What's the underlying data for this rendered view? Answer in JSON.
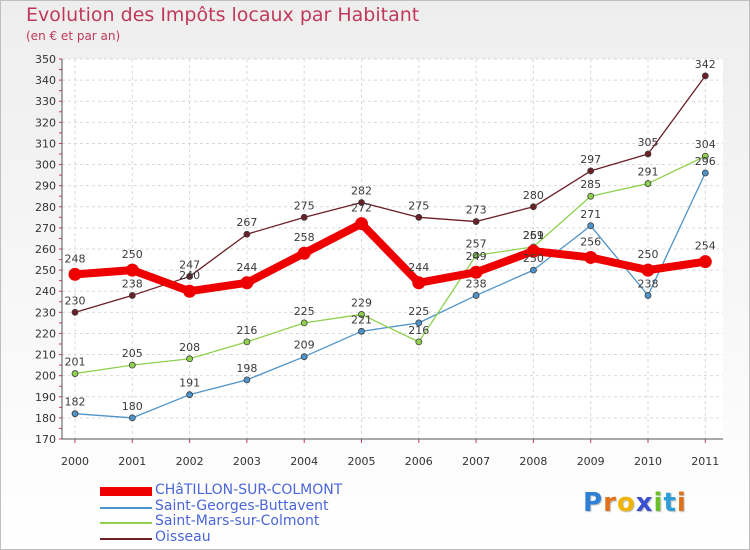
{
  "title": "Evolution des Impôts locaux par Habitant",
  "subtitle": "(en € et par an)",
  "brand": [
    "P",
    "r",
    "o",
    "x",
    "i",
    "t",
    "i"
  ],
  "brand_colors": [
    "#2e7fd6",
    "#e0701a",
    "#f0b400",
    "#3a4fd0",
    "#6bbf2a",
    "#2e9fd6",
    "#e0701a"
  ],
  "colors": {
    "red": "#ee0000",
    "blue": "#4e93c9",
    "green": "#8fd14f",
    "brown": "#6b1f26"
  },
  "chart_data": {
    "type": "line",
    "title": "Evolution des Impôts locaux par Habitant",
    "xlabel": "",
    "ylabel": "(en € et par an)",
    "ylim": [
      170,
      350
    ],
    "y_ticks": [
      170,
      180,
      190,
      200,
      210,
      220,
      230,
      240,
      250,
      260,
      270,
      280,
      290,
      300,
      310,
      320,
      330,
      340,
      350
    ],
    "categories": [
      "2000",
      "2001",
      "2002",
      "2003",
      "2004",
      "2005",
      "2006",
      "2007",
      "2008",
      "2009",
      "2010",
      "2011"
    ],
    "grid": true,
    "legend_position": "bottom-left",
    "series": [
      {
        "name": "CHâTILLON-SUR-COLMONT",
        "color": "#ee0000",
        "style": "thick",
        "values": [
          248,
          250,
          240,
          244,
          258,
          272,
          244,
          249,
          259,
          256,
          250,
          254
        ],
        "labels": [
          "248",
          "250",
          "240",
          "244",
          "258",
          "272",
          "244",
          "249",
          "259",
          "256",
          "250",
          "254"
        ]
      },
      {
        "name": "Saint-Georges-Buttavent",
        "color": "#4e93c9",
        "style": "thin",
        "values": [
          182,
          180,
          191,
          198,
          209,
          221,
          225,
          238,
          250,
          271,
          238,
          296
        ],
        "labels": [
          "182",
          "180",
          "191",
          "198",
          "209",
          "221",
          "225",
          "238",
          "250",
          "271",
          "238",
          "296"
        ]
      },
      {
        "name": "Saint-Mars-sur-Colmont",
        "color": "#8fd14f",
        "style": "thin",
        "values": [
          201,
          205,
          208,
          216,
          225,
          229,
          216,
          257,
          261,
          285,
          291,
          304
        ],
        "labels": [
          "201",
          "205",
          "208",
          "216",
          "225",
          "229",
          "216",
          "257",
          "261",
          "285",
          "291",
          "304"
        ]
      },
      {
        "name": "Oisseau",
        "color": "#6b1f26",
        "style": "thin",
        "values": [
          230,
          238,
          247,
          267,
          275,
          282,
          275,
          273,
          280,
          297,
          305,
          342
        ],
        "labels": [
          "230",
          "238",
          "247",
          "267",
          "275",
          "282",
          "275",
          "273",
          "280",
          "297",
          "305",
          "342"
        ]
      }
    ]
  }
}
